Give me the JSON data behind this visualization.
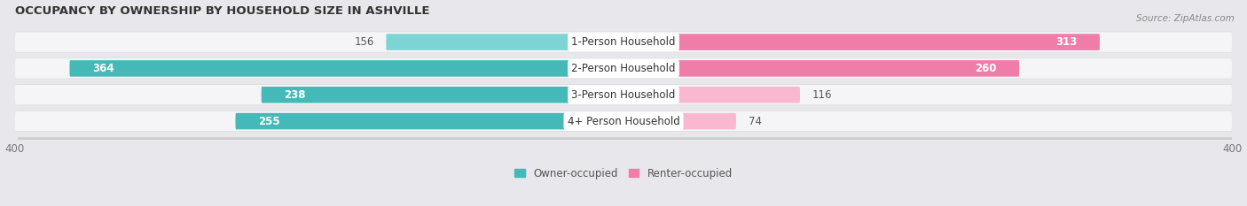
{
  "title": "OCCUPANCY BY OWNERSHIP BY HOUSEHOLD SIZE IN ASHVILLE",
  "source": "Source: ZipAtlas.com",
  "categories": [
    "1-Person Household",
    "2-Person Household",
    "3-Person Household",
    "4+ Person Household"
  ],
  "owner_values": [
    156,
    364,
    238,
    255
  ],
  "renter_values": [
    313,
    260,
    116,
    74
  ],
  "owner_color": "#45b8b8",
  "owner_color_light": "#7dd4d4",
  "renter_color": "#f07caa",
  "renter_color_light": "#f9b8d0",
  "axis_max": 400,
  "bg_color": "#e8e8ec",
  "row_bg_color": "#f5f5f7",
  "row_shadow_color": "#cccccc",
  "legend_owner": "Owner-occupied",
  "legend_renter": "Renter-occupied",
  "label_text_color": "#333333",
  "value_outside_color": "#555555"
}
